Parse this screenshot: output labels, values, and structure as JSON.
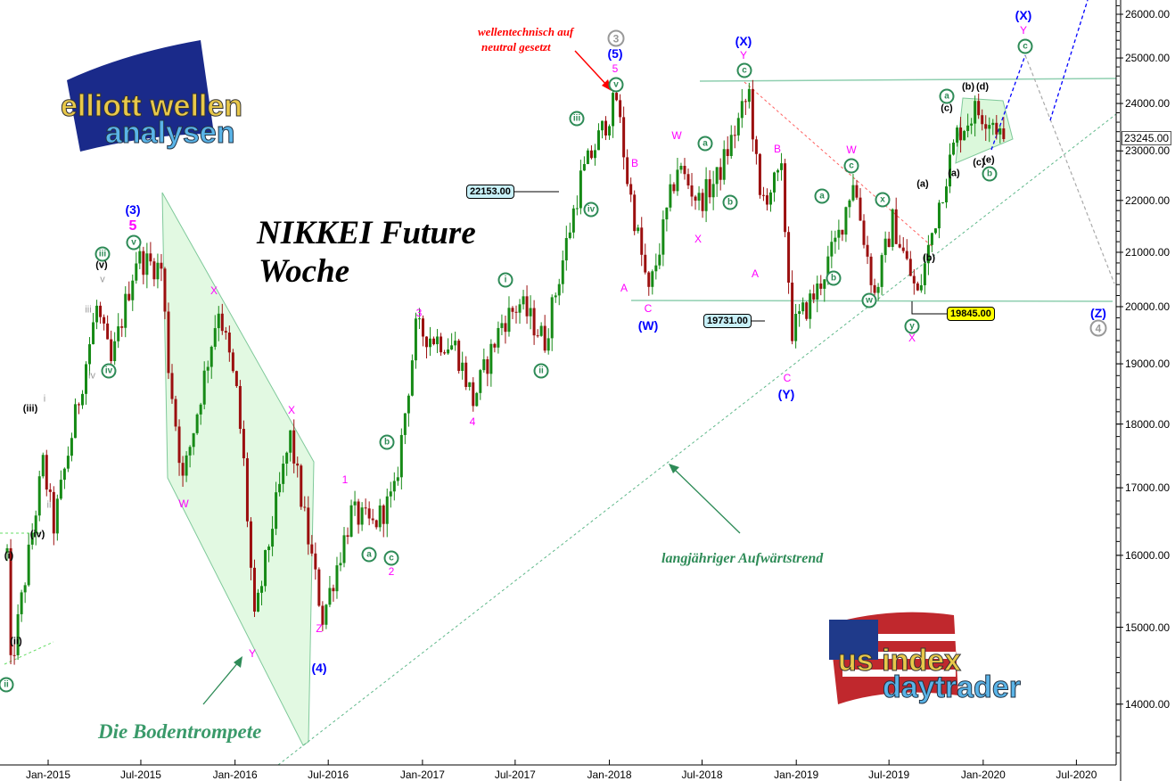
{
  "chart_data": {
    "type": "candlestick",
    "title": "NIKKEI Future",
    "subtitle": "Woche",
    "y_scale": "log",
    "ylim": [
      13300,
      26600
    ],
    "xlim": [
      "2014-10",
      "2020-10"
    ],
    "y_ticks": [
      "26000.00",
      "25000.00",
      "24000.00",
      "23000.00",
      "22000.00",
      "21000.00",
      "20000.00",
      "19000.00",
      "18000.00",
      "17000.00",
      "16000.00",
      "15000.00",
      "14000.00"
    ],
    "x_ticks": [
      "Jan-2015",
      "Jul-2015",
      "Jan-2016",
      "Jul-2016",
      "Jan-2017",
      "Jul-2017",
      "Jan-2018",
      "Jul-2018",
      "Jan-2019",
      "Jul-2019",
      "Jan-2020",
      "Jul-2020"
    ],
    "last_price": "23245.00",
    "price_path": [
      [
        "2014-10-13",
        16040
      ],
      [
        "2014-10-20",
        14450
      ],
      [
        "2014-12-22",
        17370
      ],
      [
        "2015-01-12",
        16430
      ],
      [
        "2015-04-06",
        19990
      ],
      [
        "2015-05-04",
        18980
      ],
      [
        "2015-06-22",
        20890
      ],
      [
        "2015-08-10",
        20700
      ],
      [
        "2015-08-24",
        18980
      ],
      [
        "2015-09-21",
        17100
      ],
      [
        "2015-11-30",
        20000
      ],
      [
        "2016-01-04",
        18500
      ],
      [
        "2016-01-18",
        17370
      ],
      [
        "2016-02-08",
        15050
      ],
      [
        "2016-03-14",
        16470
      ],
      [
        "2016-04-18",
        17790
      ],
      [
        "2016-05-23",
        16230
      ],
      [
        "2016-06-20",
        15130
      ],
      [
        "2016-08-15",
        16620
      ],
      [
        "2016-09-26",
        16430
      ],
      [
        "2016-11-07",
        16900
      ],
      [
        "2016-12-19",
        19580
      ],
      [
        "2017-03-06",
        19300
      ],
      [
        "2017-04-10",
        18380
      ],
      [
        "2017-06-05",
        19720
      ],
      [
        "2017-07-10",
        20050
      ],
      [
        "2017-08-28",
        19400
      ],
      [
        "2017-11-06",
        22430
      ],
      [
        "2018-01-15",
        24120
      ],
      [
        "2018-02-05",
        22430
      ],
      [
        "2018-03-19",
        20200
      ],
      [
        "2018-05-14",
        22700
      ],
      [
        "2018-06-25",
        21970
      ],
      [
        "2018-07-30",
        22430
      ],
      [
        "2018-10-01",
        24230
      ],
      [
        "2018-10-22",
        21970
      ],
      [
        "2018-12-03",
        22500
      ],
      [
        "2018-12-24",
        19580
      ],
      [
        "2019-02-11",
        20300
      ],
      [
        "2019-03-25",
        21330
      ],
      [
        "2019-04-22",
        22430
      ],
      [
        "2019-06-03",
        20200
      ],
      [
        "2019-07-08",
        21600
      ],
      [
        "2019-08-26",
        20180
      ],
      [
        "2019-10-07",
        21970
      ],
      [
        "2019-11-11",
        23350
      ],
      [
        "2019-12-16",
        23850
      ],
      [
        "2020-01-20",
        23650
      ],
      [
        "2020-02-10",
        23245
      ]
    ],
    "levels": {
      "box_1": "22153.00",
      "box_2": "19731.00",
      "box_3": "19845.00"
    },
    "grid": false,
    "colors": {
      "up": "#168a16",
      "down": "#9b0f0f",
      "wave_green": "#2e8b57",
      "wave_magenta": "#ff00ff",
      "wave_blue": "#0000ff",
      "note_red": "#ff0000"
    }
  },
  "annotations": {
    "title": "NIKKEI Future",
    "subtitle": "Woche",
    "neutral_note_1": "wellentechnisch auf",
    "neutral_note_2": "neutral gesetzt",
    "trend_note": "langjähriger Aufwärtstrend",
    "trumpet_note": "Die Bodentrompete",
    "waves": {
      "w3": "(3)",
      "m5a": "5",
      "cv1": "v",
      "ciii1": "iii",
      "bv": "(v)",
      "gv": "v",
      "giii": "iii",
      "civ1": "iv",
      "giv": "iv",
      "biii": "(iii)",
      "gi": "i",
      "biv": "(iv)",
      "gii": "ii",
      "bi": "(i)",
      "bii": "(ii)",
      "cii1": "ii",
      "mX1": "X",
      "mW1": "W",
      "mY1": "Y",
      "mX2": "X",
      "mZ": "Z",
      "w4": "(4)",
      "m1": "1",
      "ca1": "a",
      "cc1": "c",
      "m2": "2",
      "cb1": "b",
      "m3": "3",
      "m4": "4",
      "ci2": "i",
      "cii2": "ii",
      "ciii2": "iii",
      "civ2": "iv",
      "cv2": "v",
      "m5b": "5",
      "w5": "(5)",
      "g3": "3",
      "mB1": "B",
      "mA1": "A",
      "mC1": "C",
      "wW": "(W)",
      "mW2": "W",
      "ca2": "a",
      "cb2": "b",
      "mX3": "X",
      "wX1": "(X)",
      "mY2": "Y",
      "cc2": "c",
      "mB2": "B",
      "mA2": "A",
      "mC2": "C",
      "wY": "(Y)",
      "ca3": "a",
      "cb3": "b",
      "mW3": "W",
      "cc3": "c",
      "cx": "x",
      "cw": "w",
      "cy": "y",
      "mX4": "X",
      "ba1": "(a)",
      "bb1": "(b)",
      "ba2": "(a)",
      "bc1": "(c)",
      "ca4": "a",
      "bb2": "(b)",
      "bd": "(d)",
      "bc2": "(c)",
      "be": "(e)",
      "cb4": "b",
      "wX2": "(X)",
      "mY3": "Y",
      "cc4": "c",
      "wZ": "(Z)",
      "g4": "4"
    }
  },
  "logos": {
    "top_left": "elliott wellen analysen",
    "bottom_right": "us index daytrader"
  }
}
